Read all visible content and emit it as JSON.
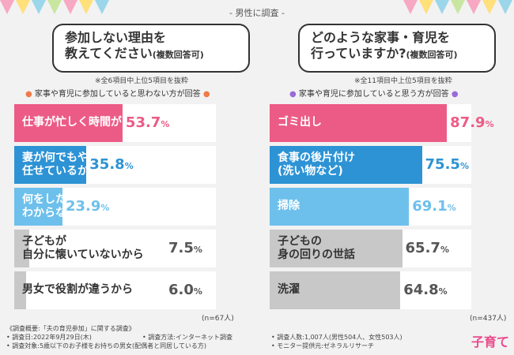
{
  "header": {
    "title": "- 男性に調査 -"
  },
  "colors": {
    "pink": "#ec5b86",
    "blue_dark": "#2d93d5",
    "blue_light": "#6dc0ec",
    "gray": "#c8c8c8",
    "orange": "#f07a4a",
    "purple": "#9a6ad8"
  },
  "bunting_colors": [
    "#f7a8c3",
    "#ffe07a",
    "#9bd6ea",
    "#c8e6a0",
    "#f7a8c3",
    "#ffe07a",
    "#9bd6ea"
  ],
  "chart_data": [
    {
      "type": "bar",
      "question_lines": [
        "参加しない理由を",
        "教えてください"
      ],
      "question_note": "(複数回答可)",
      "sub_note": "※全6項目中上位5項目を抜粋",
      "audience": "家事や育児に参加していると思わない方が回答",
      "n": "(n=67人)",
      "categories": [
        [
          "仕事が忙しく時間がないから"
        ],
        [
          "妻が何でもやってくれるので",
          "任せているから"
        ],
        [
          "何をしたらいいか",
          "わからないから"
        ],
        [
          "子どもが",
          "自分に懐いていないから"
        ],
        [
          "男女で役割が違うから"
        ]
      ],
      "values": [
        53.7,
        35.8,
        23.9,
        7.5,
        6.0
      ],
      "value_labels": [
        "53.7",
        "35.8",
        "23.9",
        "7.5",
        "6.0"
      ],
      "unit": "%",
      "ylim": [
        0,
        100
      ]
    },
    {
      "type": "bar",
      "question_lines": [
        "どのような家事・育児を",
        "行っていますか?"
      ],
      "question_note": "(複数回答可)",
      "sub_note": "※全11項目中上位5項目を抜粋",
      "audience": "家事や育児に参加していると思う方が回答",
      "n": "(n=437人)",
      "categories": [
        [
          "ゴミ出し"
        ],
        [
          "食事の後片付け",
          "(洗い物など)"
        ],
        [
          "掃除"
        ],
        [
          "子どもの",
          "身の回りの世話"
        ],
        [
          "洗濯"
        ]
      ],
      "values": [
        87.9,
        75.5,
        69.1,
        65.7,
        64.8
      ],
      "value_labels": [
        "87.9",
        "75.5",
        "69.1",
        "65.7",
        "64.8"
      ],
      "unit": "%",
      "ylim": [
        0,
        100
      ]
    }
  ],
  "footer": {
    "title": "《調査概要:「夫の育児参加」に関する調査》",
    "col1": [
      "• 調査日:2022年9月29日(木)",
      "• 調査対象:5歳以下のお子様をお持ちの男女(配偶者と同居している方)"
    ],
    "col2": [
      "• 調査方法:インターネット調査"
    ],
    "col3": [
      "• 調査人数:1,007人(男性504人、女性503人)",
      "• モニター提供元:ゼネラルリサーチ"
    ]
  },
  "logo": "子育て"
}
